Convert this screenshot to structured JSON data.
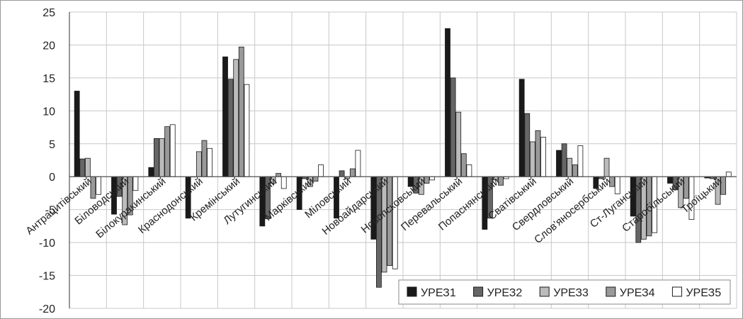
{
  "chart_data": {
    "type": "bar",
    "title": "",
    "xlabel": "",
    "ylabel": "",
    "ylim": [
      -20,
      25
    ],
    "yticks": [
      -20,
      -15,
      -10,
      -5,
      0,
      5,
      10,
      15,
      20,
      25
    ],
    "grid": true,
    "legend_position": "bottom-right",
    "categories": [
      "Антрацитівський",
      "Біловодський",
      "Білокуракинський",
      "Краснодонський",
      "Кремінський",
      "Лутугинський",
      "Марківський",
      "Міловський",
      "Новоайдарський",
      "Новопсковський",
      "Перевальський",
      "Попаснянський",
      "Сватівський",
      "Свердловський",
      "Слов'яносербський",
      "Ст-Луганський",
      "Старобільський",
      "Троїцький"
    ],
    "series": [
      {
        "name": "УРЕЗ1",
        "color": "#1a1a1a",
        "values": [
          13.0,
          -5.7,
          1.4,
          -6.3,
          18.2,
          -7.5,
          -5.0,
          -6.3,
          -9.5,
          -1.5,
          22.5,
          -8.0,
          14.8,
          4.0,
          -1.8,
          -6.0,
          -1.0,
          -0.2
        ]
      },
      {
        "name": "УРЕЗ2",
        "color": "#666666",
        "values": [
          2.7,
          -3.0,
          5.8,
          0.0,
          14.8,
          -6.4,
          -0.3,
          0.9,
          -16.8,
          -2.5,
          15.0,
          -6.3,
          9.6,
          5.0,
          -0.3,
          -10.0,
          -2.0,
          -0.3
        ]
      },
      {
        "name": "УРЕЗ3",
        "color": "#bbbbbb",
        "values": [
          2.8,
          -7.3,
          5.8,
          3.8,
          17.8,
          -1.0,
          -1.5,
          -0.3,
          -14.5,
          -2.7,
          9.8,
          -0.5,
          5.3,
          2.8,
          2.8,
          -9.5,
          -4.7,
          -4.2
        ]
      },
      {
        "name": "УРЕЗ4",
        "color": "#999999",
        "values": [
          -3.3,
          -5.8,
          7.6,
          5.5,
          19.7,
          0.5,
          -0.7,
          1.2,
          -13.5,
          -1.0,
          3.5,
          -1.3,
          7.0,
          1.8,
          -1.5,
          -9.0,
          -3.3,
          -2.7
        ]
      },
      {
        "name": "УРЕЗ5",
        "color": "#ffffff",
        "values": [
          -2.7,
          -2.1,
          7.9,
          4.3,
          14.0,
          -1.8,
          1.8,
          4.0,
          -14.0,
          -0.5,
          1.8,
          -0.3,
          6.0,
          4.7,
          -2.6,
          -8.5,
          -6.5,
          0.7
        ]
      }
    ]
  }
}
